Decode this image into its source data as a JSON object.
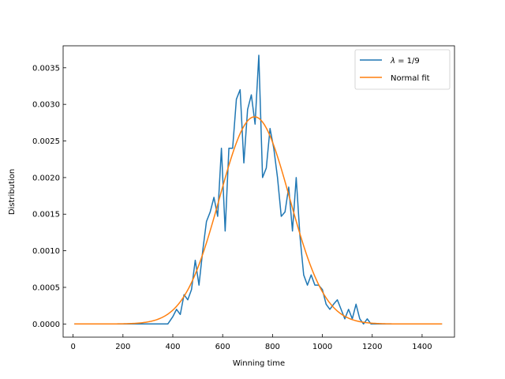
{
  "chart_data": {
    "type": "line",
    "title": "",
    "xlabel": "Winning time",
    "ylabel": "Distribution",
    "xlim": [
      -40,
      1530
    ],
    "ylim": [
      -0.00018,
      0.0038
    ],
    "xticks": [
      0,
      200,
      400,
      600,
      800,
      1000,
      1200,
      1400
    ],
    "xtick_labels": [
      "0",
      "200",
      "400",
      "600",
      "800",
      "1000",
      "1200",
      "1400"
    ],
    "yticks": [
      0,
      0.0005,
      0.001,
      0.0015,
      0.002,
      0.0025,
      0.003,
      0.0035
    ],
    "ytick_labels": [
      "0.0000",
      "0.0005",
      "0.0010",
      "0.0015",
      "0.0020",
      "0.0025",
      "0.0030",
      "0.0035"
    ],
    "legend_position": "top-right",
    "grid": false,
    "series": [
      {
        "name": "λ = 1/9",
        "label_parts": [
          "λ",
          " = 1/9"
        ],
        "color": "#1f77b4",
        "x": [
          5,
          100,
          200,
          300,
          380,
          400,
          415,
          430,
          445,
          460,
          475,
          490,
          505,
          520,
          535,
          550,
          565,
          580,
          595,
          610,
          625,
          640,
          655,
          670,
          685,
          700,
          715,
          730,
          745,
          760,
          775,
          790,
          805,
          820,
          835,
          850,
          865,
          880,
          895,
          910,
          925,
          940,
          955,
          970,
          985,
          1000,
          1015,
          1030,
          1045,
          1060,
          1075,
          1090,
          1105,
          1120,
          1135,
          1150,
          1165,
          1180,
          1195,
          1210,
          1300,
          1400,
          1480
        ],
        "values": [
          0.0,
          0.0,
          0.0,
          0.0,
          0.0,
          0.0001,
          0.0002,
          0.00013,
          0.0004,
          0.00033,
          0.00047,
          0.00087,
          0.00053,
          0.001,
          0.0014,
          0.00153,
          0.00173,
          0.00147,
          0.0024,
          0.00127,
          0.0024,
          0.0024,
          0.00307,
          0.0032,
          0.0022,
          0.00293,
          0.00313,
          0.00273,
          0.00367,
          0.002,
          0.00213,
          0.00267,
          0.0024,
          0.002,
          0.00147,
          0.00153,
          0.00187,
          0.00127,
          0.002,
          0.0012,
          0.00067,
          0.00053,
          0.00067,
          0.00053,
          0.00053,
          0.00047,
          0.00027,
          0.0002,
          0.00027,
          0.00033,
          0.0002,
          7e-05,
          0.0002,
          7e-05,
          0.00027,
          7e-05,
          0.0,
          7e-05,
          0.0,
          0.0,
          0.0,
          0.0,
          0.0
        ]
      },
      {
        "name": "Normal fit",
        "color": "#ff7f0e",
        "mean": 728,
        "sd": 141,
        "peak": 0.00283,
        "x_range": [
          5,
          1480
        ]
      }
    ]
  }
}
